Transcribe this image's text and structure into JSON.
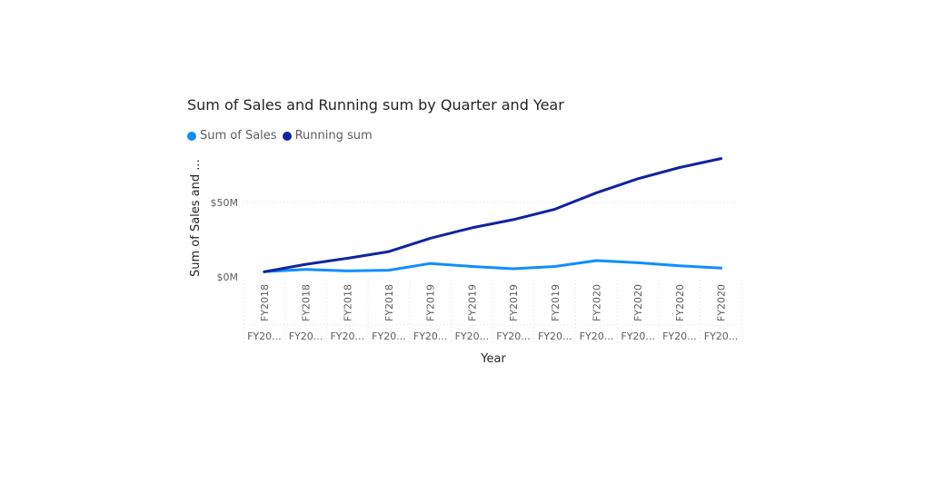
{
  "chart_data": {
    "type": "line",
    "title": "Sum of Sales and Running sum by Quarter and Year",
    "xlabel": "Year",
    "ylabel": "Sum of Sales and ...",
    "categories": [
      "FY2018",
      "FY2018",
      "FY2018",
      "FY2018",
      "FY2019",
      "FY2019",
      "FY2019",
      "FY2019",
      "FY2020",
      "FY2020",
      "FY2020",
      "FY2020"
    ],
    "category_sublabels": [
      "FY20...",
      "FY20...",
      "FY20...",
      "FY20...",
      "FY20...",
      "FY20...",
      "FY20...",
      "FY20...",
      "FY20...",
      "FY20...",
      "FY20...",
      "FY20..."
    ],
    "series": [
      {
        "name": "Sum of Sales",
        "color": "#118dff",
        "values": [
          3.5,
          5,
          4,
          4.5,
          9,
          7,
          5.5,
          7,
          11,
          9.5,
          7.5,
          6
        ]
      },
      {
        "name": "Running sum",
        "color": "#12239e",
        "values": [
          3.5,
          8.5,
          12.5,
          17,
          26,
          33,
          38.5,
          45.5,
          56.5,
          66,
          73.5,
          79.5
        ]
      }
    ],
    "y_ticks": [
      {
        "value": 0,
        "label": "$0M"
      },
      {
        "value": 50,
        "label": "$50M"
      }
    ],
    "ylim": [
      0,
      80
    ],
    "grid": true,
    "legend_position": "top-left"
  }
}
